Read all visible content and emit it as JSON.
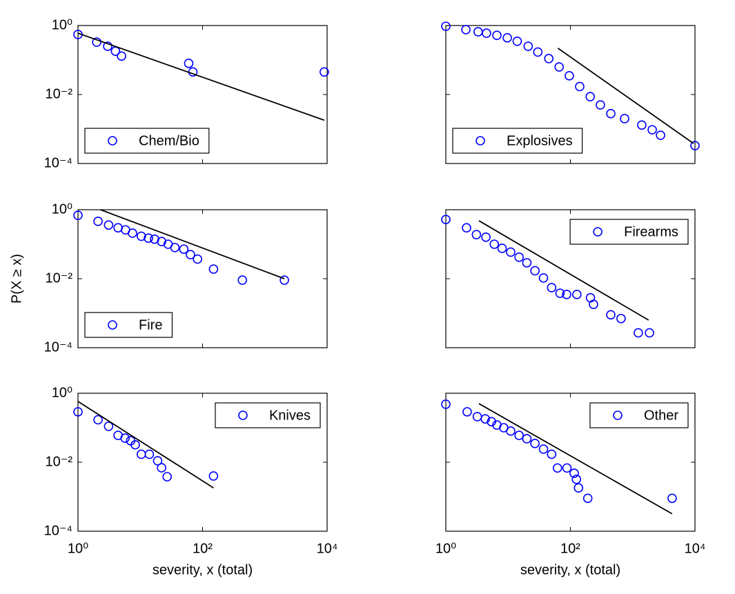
{
  "chart_data": [
    {
      "type": "scatter",
      "log_x": true,
      "log_y": true,
      "xlim": [
        1,
        10000
      ],
      "ylim": [
        0.0001,
        1
      ],
      "xticks": [
        1,
        100,
        10000
      ],
      "xtick_labels": false,
      "yticks": [
        {
          "value": 0.0001,
          "label": "10⁻⁴"
        },
        {
          "value": 0.01,
          "label": "10⁻²"
        },
        {
          "value": 1,
          "label": "10⁰"
        }
      ],
      "legend": "lower left",
      "series": [
        {
          "name": "Chem/Bio",
          "type": "scatter",
          "color": "#0000ff",
          "x": [
            1,
            2,
            3,
            4,
            5,
            60,
            70,
            9000
          ],
          "values": [
            0.55,
            0.33,
            0.25,
            0.18,
            0.13,
            0.08,
            0.045,
            0.045
          ]
        },
        {
          "type": "line",
          "color": "#000000",
          "x": [
            1,
            9000
          ],
          "values": [
            0.6,
            0.0018
          ]
        }
      ]
    },
    {
      "type": "scatter",
      "log_x": true,
      "log_y": true,
      "xlim": [
        1,
        10000
      ],
      "ylim": [
        0.0001,
        1
      ],
      "xticks": [
        1,
        100,
        10000
      ],
      "xtick_labels": false,
      "yticks": [
        0.0001,
        0.01,
        1
      ],
      "ytick_labels": false,
      "legend": "lower left",
      "series": [
        {
          "name": "Explosives",
          "type": "scatter",
          "color": "#0000ff",
          "x": [
            1,
            2.1,
            3.3,
            4.5,
            6.6,
            9.7,
            14,
            21,
            30,
            45,
            66,
            96,
            141,
            208,
            303,
            445,
            741,
            1400,
            2060,
            2800,
            10000
          ],
          "values": [
            0.95,
            0.76,
            0.66,
            0.6,
            0.52,
            0.44,
            0.35,
            0.25,
            0.17,
            0.11,
            0.063,
            0.035,
            0.017,
            0.0087,
            0.005,
            0.0028,
            0.002,
            0.0013,
            0.00095,
            0.00066,
            0.00033
          ]
        },
        {
          "type": "line",
          "color": "#000000",
          "x": [
            63,
            9500
          ],
          "values": [
            0.22,
            0.00038
          ]
        }
      ]
    },
    {
      "type": "scatter",
      "log_x": true,
      "log_y": true,
      "xlim": [
        1,
        10000
      ],
      "ylim": [
        0.0001,
        1
      ],
      "xticks": [
        1,
        100,
        10000
      ],
      "xtick_labels": false,
      "yticks": [
        {
          "value": 0.0001,
          "label": "10⁻⁴"
        },
        {
          "value": 0.01,
          "label": "10⁻²"
        },
        {
          "value": 1,
          "label": "10⁰"
        }
      ],
      "ylabel": "P(X ≥ x)",
      "legend": "lower left",
      "series": [
        {
          "name": "Fire",
          "type": "scatter",
          "color": "#0000ff",
          "x": [
            1,
            2.1,
            3.1,
            4.4,
            5.8,
            7.5,
            10.4,
            13.5,
            17,
            22,
            28,
            36,
            50,
            64,
            83,
            150,
            436,
            2060
          ],
          "values": [
            0.69,
            0.46,
            0.36,
            0.3,
            0.26,
            0.21,
            0.17,
            0.15,
            0.14,
            0.12,
            0.1,
            0.08,
            0.072,
            0.05,
            0.037,
            0.019,
            0.0091,
            0.0091
          ]
        },
        {
          "type": "line",
          "color": "#000000",
          "x": [
            2.3,
            2060
          ],
          "values": [
            1.0,
            0.01
          ]
        }
      ]
    },
    {
      "type": "scatter",
      "log_x": true,
      "log_y": true,
      "xlim": [
        1,
        10000
      ],
      "ylim": [
        0.0001,
        1
      ],
      "xticks": [
        1,
        100,
        10000
      ],
      "xtick_labels": false,
      "yticks": [
        0.0001,
        0.01,
        1
      ],
      "ytick_labels": false,
      "legend": "upper right",
      "series": [
        {
          "name": "Firearms",
          "type": "scatter",
          "color": "#0000ff",
          "x": [
            1,
            2.15,
            3.1,
            4.4,
            6,
            8,
            11,
            15,
            20,
            27,
            37,
            50,
            68,
            87,
            127,
            210,
            235,
            445,
            650,
            1230,
            1860
          ],
          "values": [
            0.52,
            0.3,
            0.19,
            0.16,
            0.1,
            0.076,
            0.059,
            0.042,
            0.029,
            0.017,
            0.0105,
            0.0055,
            0.0038,
            0.0035,
            0.0035,
            0.0028,
            0.0018,
            0.0009,
            0.0007,
            0.00027,
            0.00027
          ]
        },
        {
          "type": "line",
          "color": "#000000",
          "x": [
            3.4,
            1800
          ],
          "values": [
            0.48,
            0.00063
          ]
        }
      ]
    },
    {
      "type": "scatter",
      "log_x": true,
      "log_y": true,
      "xlim": [
        1,
        10000
      ],
      "ylim": [
        0.0001,
        1
      ],
      "xticks": [
        {
          "value": 1,
          "label": "10⁰"
        },
        {
          "value": 100,
          "label": "10²"
        },
        {
          "value": 10000,
          "label": "10⁴"
        }
      ],
      "yticks": [
        {
          "value": 0.0001,
          "label": "10⁻⁴"
        },
        {
          "value": 0.01,
          "label": "10⁻²"
        },
        {
          "value": 1,
          "label": "10⁰"
        }
      ],
      "xlabel": "severity, x (total)",
      "legend": "upper right",
      "series": [
        {
          "name": "Knives",
          "type": "scatter",
          "color": "#0000ff",
          "x": [
            1,
            2.1,
            3.1,
            4.4,
            5.7,
            7,
            8.3,
            10.4,
            14,
            19,
            22,
            27,
            150
          ],
          "values": [
            0.29,
            0.17,
            0.11,
            0.06,
            0.05,
            0.042,
            0.032,
            0.017,
            0.017,
            0.011,
            0.0069,
            0.0038,
            0.004
          ]
        },
        {
          "type": "line",
          "color": "#000000",
          "x": [
            1,
            150
          ],
          "values": [
            0.58,
            0.0018
          ]
        }
      ]
    },
    {
      "type": "scatter",
      "log_x": true,
      "log_y": true,
      "xlim": [
        1,
        10000
      ],
      "ylim": [
        0.0001,
        1
      ],
      "xticks": [
        {
          "value": 1,
          "label": "10⁰"
        },
        {
          "value": 100,
          "label": "10²"
        },
        {
          "value": 10000,
          "label": "10⁴"
        }
      ],
      "yticks": [
        0.0001,
        0.01,
        1
      ],
      "ytick_labels": false,
      "xlabel": "severity, x (total)",
      "legend": "upper right",
      "series": [
        {
          "name": "Other",
          "type": "scatter",
          "color": "#0000ff",
          "x": [
            1,
            2.2,
            3.2,
            4.3,
            5.4,
            6.6,
            8.5,
            11,
            15,
            20,
            27,
            37,
            50,
            62,
            88,
            115,
            125,
            135,
            190,
            4300
          ],
          "values": [
            0.48,
            0.29,
            0.21,
            0.18,
            0.15,
            0.12,
            0.1,
            0.08,
            0.06,
            0.048,
            0.035,
            0.024,
            0.017,
            0.0068,
            0.0068,
            0.0048,
            0.0032,
            0.0018,
            0.0009,
            0.0009
          ]
        },
        {
          "type": "line",
          "color": "#000000",
          "x": [
            3.4,
            4300
          ],
          "values": [
            0.5,
            0.00032
          ]
        }
      ]
    }
  ]
}
